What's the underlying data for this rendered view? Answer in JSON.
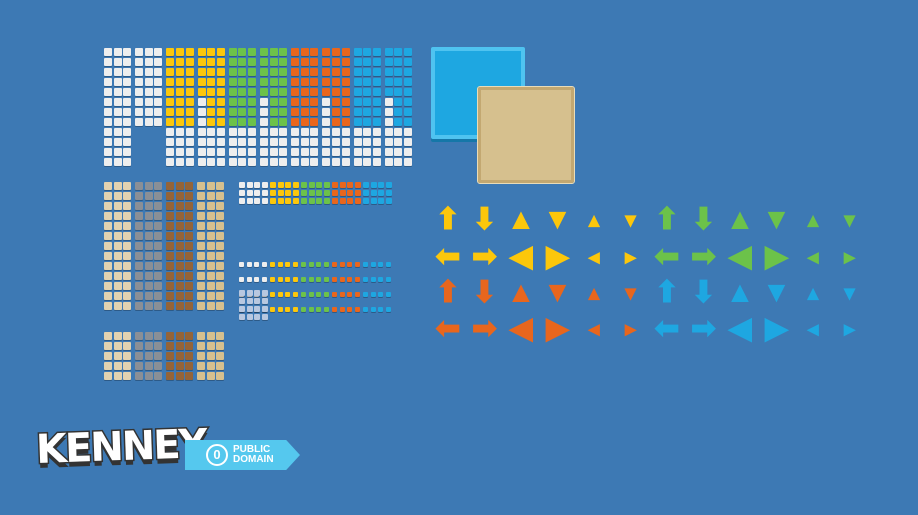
{
  "palette": {
    "background": "#3d79b4",
    "white": "#eeeeee",
    "yellow": "#fcc70b",
    "green": "#6cc24a",
    "orange": "#e8661d",
    "blue": "#1ea7e1",
    "beige": "#e2d2b0",
    "grey": "#8a8f96",
    "brown": "#946438",
    "tan": "#d6c08e"
  },
  "top_tile_columns": [
    "white",
    "white",
    "yellow",
    "yellow",
    "green",
    "green",
    "orange",
    "orange",
    "blue",
    "blue"
  ],
  "lower_tile_columns": [
    "beige",
    "grey",
    "brown",
    "tan"
  ],
  "mini_tile_columns": [
    "white",
    "yellow",
    "green",
    "orange",
    "blue"
  ],
  "arrows": {
    "rows": [
      {
        "color": "yellow",
        "alt": "green",
        "glyphs": [
          "⬆",
          "⬇",
          "▲",
          "▼",
          "▴",
          "▾"
        ]
      },
      {
        "color": "yellow",
        "alt": "green",
        "glyphs": [
          "⬅",
          "➡",
          "◀",
          "▶",
          "◂",
          "▸"
        ]
      },
      {
        "color": "orange",
        "alt": "blue",
        "glyphs": [
          "⬆",
          "⬇",
          "▲",
          "▼",
          "▴",
          "▾"
        ]
      },
      {
        "color": "orange",
        "alt": "blue",
        "glyphs": [
          "⬅",
          "➡",
          "◀",
          "▶",
          "◂",
          "▸"
        ]
      }
    ]
  },
  "logo": {
    "text": "KENNEY",
    "badge_symbol": "0",
    "badge_line1": "PUBLIC",
    "badge_line2": "DOMAIN"
  }
}
